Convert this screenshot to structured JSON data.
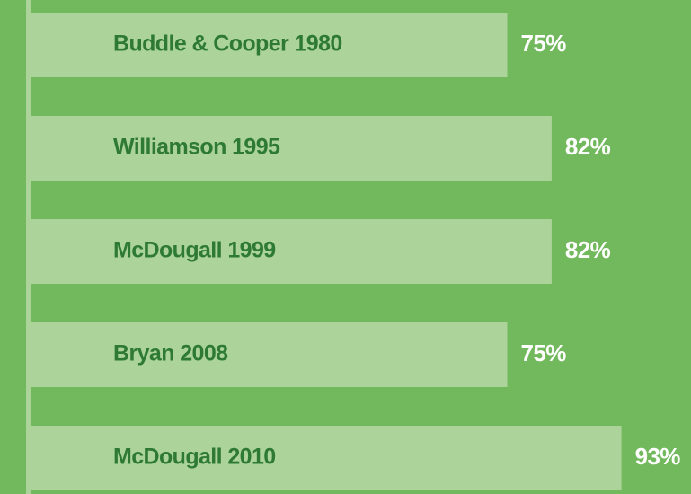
{
  "chart_data": {
    "type": "bar",
    "orientation": "horizontal",
    "categories": [
      "Buddle & Cooper 1980",
      "Williamson 1995",
      "McDougall 1999",
      "Bryan 2008",
      "McDougall 2010"
    ],
    "values": [
      75,
      82,
      82,
      75,
      93
    ],
    "value_labels": [
      "75%",
      "82%",
      "82%",
      "75%",
      "93%"
    ],
    "color": "#acd49a"
  }
}
